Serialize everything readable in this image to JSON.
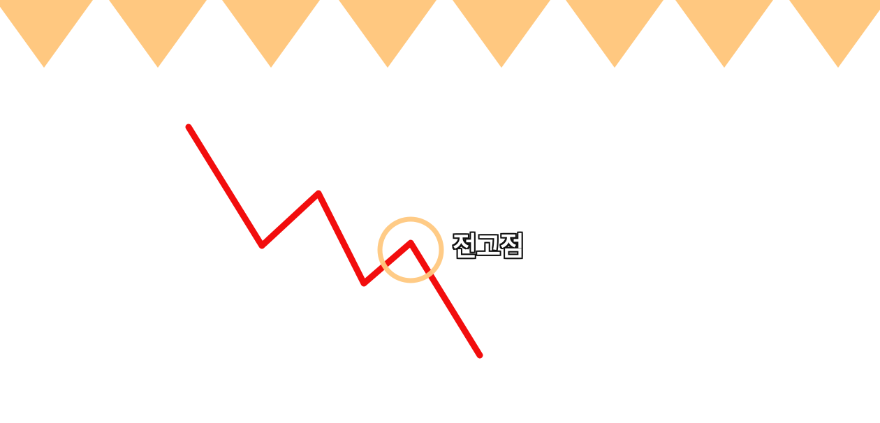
{
  "colors": {
    "banner": "#FFC880",
    "line": "#F20D0D",
    "highlight": "#FFC880",
    "label_text": "#FFFFFF",
    "label_outline": "#111111"
  },
  "annotation": {
    "label": "전고점",
    "icon": "circle-highlight"
  }
}
